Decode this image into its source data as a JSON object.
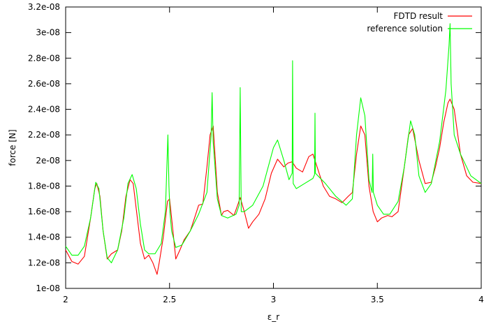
{
  "chart_data": {
    "type": "line",
    "xlabel": "ε_r",
    "ylabel": "force [N]",
    "xlim": [
      2,
      4
    ],
    "ylim": [
      1e-08,
      3.2e-08
    ],
    "xticks": [
      2,
      2.5,
      3,
      3.5,
      4
    ],
    "xtick_labels": [
      "2",
      "2.5",
      "3",
      "3.5",
      "4"
    ],
    "yticks": [
      1e-08,
      1.2e-08,
      1.4e-08,
      1.6e-08,
      1.8e-08,
      2e-08,
      2.2e-08,
      2.4e-08,
      2.6e-08,
      2.8e-08,
      3e-08,
      3.2e-08
    ],
    "ytick_labels": [
      "1e-08",
      "1.2e-08",
      "1.4e-08",
      "1.6e-08",
      "1.8e-08",
      "2e-08",
      "2.2e-08",
      "2.4e-08",
      "2.6e-08",
      "2.8e-08",
      "3e-08",
      "3.2e-08"
    ],
    "grid": false,
    "legend_position": "top-right",
    "series": [
      {
        "name": "FDTD result",
        "color": "#ff0000",
        "x": [
          2.0,
          2.03,
          2.06,
          2.09,
          2.12,
          2.14,
          2.15,
          2.165,
          2.18,
          2.2,
          2.22,
          2.25,
          2.27,
          2.29,
          2.31,
          2.325,
          2.34,
          2.36,
          2.38,
          2.4,
          2.42,
          2.44,
          2.45,
          2.47,
          2.49,
          2.5,
          2.51,
          2.53,
          2.55,
          2.57,
          2.6,
          2.62,
          2.64,
          2.66,
          2.68,
          2.695,
          2.71,
          2.73,
          2.75,
          2.76,
          2.78,
          2.81,
          2.83,
          2.84,
          2.86,
          2.88,
          2.9,
          2.93,
          2.96,
          2.99,
          3.02,
          3.05,
          3.07,
          3.09,
          3.11,
          3.14,
          3.17,
          3.19,
          3.21,
          3.24,
          3.27,
          3.3,
          3.33,
          3.36,
          3.38,
          3.4,
          3.42,
          3.44,
          3.46,
          3.48,
          3.5,
          3.52,
          3.55,
          3.57,
          3.6,
          3.63,
          3.65,
          3.67,
          3.7,
          3.73,
          3.76,
          3.78,
          3.8,
          3.82,
          3.84,
          3.85,
          3.87,
          3.9,
          3.93,
          3.96,
          4.0
        ],
        "y": [
          1.3e-08,
          1.21e-08,
          1.19e-08,
          1.25e-08,
          1.55e-08,
          1.78e-08,
          1.82e-08,
          1.72e-08,
          1.45e-08,
          1.23e-08,
          1.27e-08,
          1.3e-08,
          1.45e-08,
          1.72e-08,
          1.85e-08,
          1.82e-08,
          1.62e-08,
          1.35e-08,
          1.23e-08,
          1.26e-08,
          1.2e-08,
          1.11e-08,
          1.2e-08,
          1.4e-08,
          1.68e-08,
          1.7e-08,
          1.55e-08,
          1.23e-08,
          1.3e-08,
          1.38e-08,
          1.45e-08,
          1.55e-08,
          1.65e-08,
          1.66e-08,
          1.95e-08,
          2.2e-08,
          2.27e-08,
          1.75e-08,
          1.57e-08,
          1.6e-08,
          1.61e-08,
          1.57e-08,
          1.66e-08,
          1.71e-08,
          1.6e-08,
          1.47e-08,
          1.52e-08,
          1.58e-08,
          1.7e-08,
          1.9e-08,
          2.01e-08,
          1.95e-08,
          1.98e-08,
          1.99e-08,
          1.94e-08,
          1.91e-08,
          2.03e-08,
          2.05e-08,
          1.95e-08,
          1.8e-08,
          1.72e-08,
          1.7e-08,
          1.67e-08,
          1.72e-08,
          1.75e-08,
          2.05e-08,
          2.27e-08,
          2.2e-08,
          1.8e-08,
          1.6e-08,
          1.52e-08,
          1.55e-08,
          1.57e-08,
          1.56e-08,
          1.6e-08,
          1.95e-08,
          2.2e-08,
          2.25e-08,
          2e-08,
          1.82e-08,
          1.83e-08,
          1.95e-08,
          2.1e-08,
          2.3e-08,
          2.45e-08,
          2.48e-08,
          2.4e-08,
          2.05e-08,
          1.88e-08,
          1.83e-08,
          1.82e-08
        ]
      },
      {
        "name": "reference solution",
        "color": "#00ff00",
        "x": [
          2.0,
          2.03,
          2.06,
          2.09,
          2.12,
          2.145,
          2.16,
          2.18,
          2.2,
          2.22,
          2.25,
          2.28,
          2.3,
          2.32,
          2.34,
          2.36,
          2.38,
          2.4,
          2.43,
          2.46,
          2.48,
          2.492,
          2.497,
          2.502,
          2.51,
          2.53,
          2.56,
          2.6,
          2.64,
          2.68,
          2.7,
          2.705,
          2.71,
          2.73,
          2.75,
          2.78,
          2.82,
          2.835,
          2.84,
          2.845,
          2.86,
          2.9,
          2.95,
          3.0,
          3.02,
          3.05,
          3.075,
          3.09,
          3.092,
          3.095,
          3.11,
          3.15,
          3.19,
          3.198,
          3.2,
          3.202,
          3.25,
          3.3,
          3.35,
          3.38,
          3.4,
          3.42,
          3.44,
          3.46,
          3.475,
          3.478,
          3.481,
          3.5,
          3.53,
          3.56,
          3.6,
          3.63,
          3.66,
          3.68,
          3.7,
          3.73,
          3.76,
          3.8,
          3.83,
          3.845,
          3.85,
          3.855,
          3.87,
          3.9,
          3.95,
          4.0
        ],
        "y": [
          1.33e-08,
          1.26e-08,
          1.26e-08,
          1.33e-08,
          1.55e-08,
          1.83e-08,
          1.78e-08,
          1.45e-08,
          1.24e-08,
          1.2e-08,
          1.3e-08,
          1.55e-08,
          1.82e-08,
          1.89e-08,
          1.78e-08,
          1.5e-08,
          1.3e-08,
          1.27e-08,
          1.27e-08,
          1.35e-08,
          1.6e-08,
          2.2e-08,
          1.8e-08,
          1.6e-08,
          1.45e-08,
          1.32e-08,
          1.34e-08,
          1.45e-08,
          1.58e-08,
          1.75e-08,
          2.2e-08,
          2.53e-08,
          2.15e-08,
          1.7e-08,
          1.57e-08,
          1.55e-08,
          1.58e-08,
          1.65e-08,
          2.57e-08,
          1.6e-08,
          1.6e-08,
          1.65e-08,
          1.8e-08,
          2.1e-08,
          2.16e-08,
          2e-08,
          1.85e-08,
          1.9e-08,
          2.78e-08,
          1.82e-08,
          1.78e-08,
          1.82e-08,
          1.86e-08,
          1.89e-08,
          2.37e-08,
          1.9e-08,
          1.82e-08,
          1.72e-08,
          1.65e-08,
          1.7e-08,
          2.2e-08,
          2.49e-08,
          2.35e-08,
          1.85e-08,
          1.75e-08,
          2.05e-08,
          1.75e-08,
          1.65e-08,
          1.58e-08,
          1.58e-08,
          1.68e-08,
          1.95e-08,
          2.31e-08,
          2.2e-08,
          1.88e-08,
          1.75e-08,
          1.82e-08,
          2.15e-08,
          2.55e-08,
          2.9e-08,
          3.07e-08,
          2.6e-08,
          2.2e-08,
          2.05e-08,
          1.88e-08,
          1.82e-08
        ]
      }
    ]
  }
}
